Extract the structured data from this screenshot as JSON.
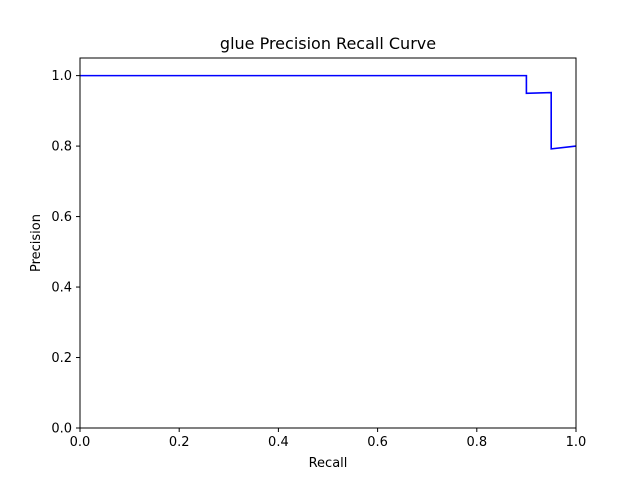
{
  "chart_data": {
    "type": "line",
    "title": "glue Precision Recall Curve",
    "xlabel": "Recall",
    "ylabel": "Precision",
    "xlim": [
      0.0,
      1.0
    ],
    "ylim": [
      0.0,
      1.05
    ],
    "x_ticks": [
      0.0,
      0.2,
      0.4,
      0.6,
      0.8,
      1.0
    ],
    "x_tick_labels": [
      "0.0",
      "0.2",
      "0.4",
      "0.6",
      "0.8",
      "1.0"
    ],
    "y_ticks": [
      0.0,
      0.2,
      0.4,
      0.6,
      0.8,
      1.0
    ],
    "y_tick_labels": [
      "0.0",
      "0.2",
      "0.4",
      "0.6",
      "0.8",
      "1.0"
    ],
    "grid": false,
    "legend": "none",
    "series": [
      {
        "color": "#0000ff",
        "x": [
          0.0,
          0.9,
          0.9,
          0.95,
          0.95,
          1.0
        ],
        "y": [
          1.0,
          1.0,
          0.95,
          0.952,
          0.792,
          0.8
        ]
      }
    ]
  }
}
